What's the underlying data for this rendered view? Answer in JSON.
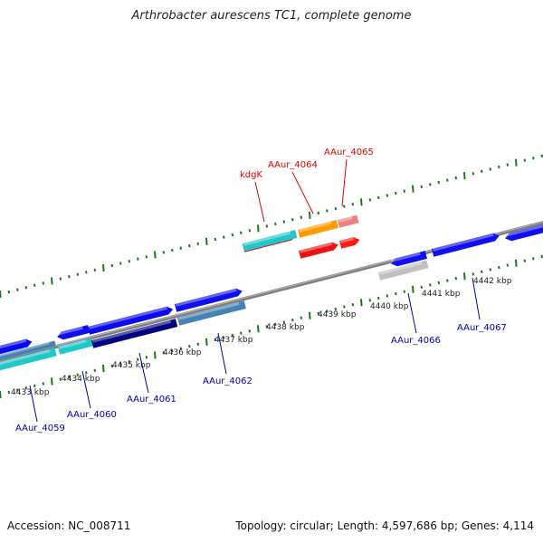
{
  "title": "Arthrobacter aurescens TC1, complete genome",
  "footer": {
    "accession": "Accession: NC_008711",
    "summary": "Topology: circular; Length: 4,597,686 bp; Genes: 4,114"
  },
  "colors": {
    "backbone": "#8c8c8c",
    "tick": "#1a7a1a",
    "forward_label": "#e60000",
    "reverse_label": "#0000b4"
  },
  "kbp_labels": [
    "4433 kbp",
    "4434 kbp",
    "4435 kbp",
    "4436 kbp",
    "4437 kbp",
    "4438 kbp",
    "4439 kbp",
    "4440 kbp",
    "4441 kbp",
    "4442 kbp"
  ],
  "gene_labels_forward": [
    "kdgK",
    "AAur_4064",
    "AAur_4065"
  ],
  "gene_labels_reverse": [
    "AAur_4059",
    "AAur_4060",
    "AAur_4061",
    "AAur_4062",
    "AAur_4066",
    "AAur_4067"
  ]
}
